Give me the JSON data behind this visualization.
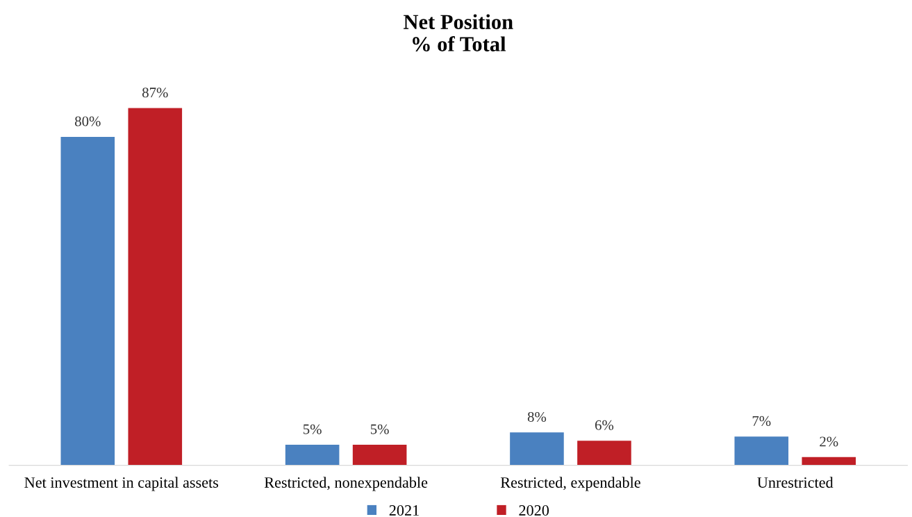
{
  "chart_data": {
    "type": "bar",
    "title": "Net Position\n% of Total",
    "categories": [
      "Net investment in capital assets",
      "Restricted, nonexpendable",
      "Restricted, expendable",
      "Unrestricted"
    ],
    "series": [
      {
        "name": "2021",
        "color": "#4a81c0",
        "values": [
          80,
          5,
          8,
          7
        ],
        "value_labels": [
          "80%",
          "5%",
          "8%",
          "7%"
        ]
      },
      {
        "name": "2020",
        "color": "#c01f26",
        "values": [
          87,
          5,
          6,
          2
        ],
        "value_labels": [
          "87%",
          "5%",
          "6%",
          "2%"
        ]
      }
    ],
    "grid": false,
    "legend": "bottom"
  }
}
